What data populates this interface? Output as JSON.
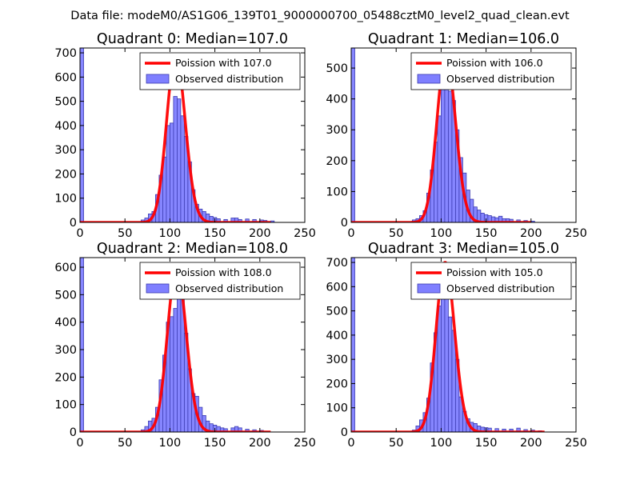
{
  "suptitle": "Data file: modeM0/AS1G06_139T01_9000000700_05488cztM0_level2_quad_clean.evt",
  "colors": {
    "bar_fill": "#7f7fff",
    "bar_edge": "#3a3ab0",
    "curve": "#ff0000",
    "axis": "#000000"
  },
  "chart_data": [
    {
      "type": "bar",
      "title": "Quadrant 0: Median=107.0",
      "xlabel": "",
      "ylabel": "",
      "xlim": [
        0,
        250
      ],
      "ylim": [
        0,
        720
      ],
      "xticks": [
        0,
        50,
        100,
        150,
        200,
        250
      ],
      "yticks": [
        0,
        100,
        200,
        300,
        400,
        500,
        600,
        700
      ],
      "bin_width": 4,
      "bins": [
        [
          0,
          720
        ],
        [
          68,
          10
        ],
        [
          72,
          18
        ],
        [
          76,
          35
        ],
        [
          80,
          45
        ],
        [
          84,
          115
        ],
        [
          88,
          195
        ],
        [
          92,
          270
        ],
        [
          96,
          400
        ],
        [
          100,
          410
        ],
        [
          104,
          520
        ],
        [
          108,
          510
        ],
        [
          112,
          440
        ],
        [
          116,
          355
        ],
        [
          120,
          250
        ],
        [
          124,
          135
        ],
        [
          128,
          75
        ],
        [
          132,
          55
        ],
        [
          136,
          45
        ],
        [
          140,
          35
        ],
        [
          144,
          25
        ],
        [
          148,
          20
        ],
        [
          152,
          15
        ],
        [
          160,
          12
        ],
        [
          168,
          18
        ],
        [
          172,
          18
        ],
        [
          176,
          12
        ],
        [
          184,
          14
        ],
        [
          192,
          12
        ],
        [
          200,
          10
        ],
        [
          204,
          8
        ],
        [
          212,
          6
        ]
      ],
      "poisson": {
        "mean": 107.0,
        "peak": 690,
        "x_range": [
          0,
          212
        ]
      },
      "legend": {
        "position": "top-right",
        "entries": [
          "Poission with 107.0",
          "Observed distribution"
        ]
      }
    },
    {
      "type": "bar",
      "title": "Quadrant 1: Median=106.0",
      "xlabel": "",
      "ylabel": "",
      "xlim": [
        0,
        250
      ],
      "ylim": [
        0,
        565
      ],
      "xticks": [
        0,
        50,
        100,
        150,
        200,
        250
      ],
      "yticks": [
        0,
        100,
        200,
        300,
        400,
        500
      ],
      "bin_width": 4,
      "bins": [
        [
          0,
          565
        ],
        [
          68,
          8
        ],
        [
          72,
          12
        ],
        [
          76,
          22
        ],
        [
          80,
          38
        ],
        [
          84,
          95
        ],
        [
          88,
          170
        ],
        [
          92,
          260
        ],
        [
          96,
          345
        ],
        [
          100,
          440
        ],
        [
          104,
          470
        ],
        [
          108,
          425
        ],
        [
          112,
          395
        ],
        [
          116,
          300
        ],
        [
          120,
          210
        ],
        [
          124,
          160
        ],
        [
          128,
          105
        ],
        [
          132,
          75
        ],
        [
          136,
          50
        ],
        [
          140,
          40
        ],
        [
          144,
          30
        ],
        [
          148,
          25
        ],
        [
          152,
          22
        ],
        [
          156,
          18
        ],
        [
          160,
          15
        ],
        [
          164,
          20
        ],
        [
          168,
          12
        ],
        [
          172,
          12
        ],
        [
          176,
          10
        ],
        [
          184,
          8
        ],
        [
          192,
          6
        ],
        [
          200,
          4
        ]
      ],
      "poisson": {
        "mean": 106.0,
        "peak": 545,
        "x_range": [
          0,
          200
        ]
      },
      "legend": {
        "position": "top-right",
        "entries": [
          "Poission with 106.0",
          "Observed distribution"
        ]
      }
    },
    {
      "type": "bar",
      "title": "Quadrant 2: Median=108.0",
      "xlabel": "",
      "ylabel": "",
      "xlim": [
        0,
        250
      ],
      "ylim": [
        0,
        635
      ],
      "xticks": [
        0,
        50,
        100,
        150,
        200,
        250
      ],
      "yticks": [
        0,
        100,
        200,
        300,
        400,
        500,
        600
      ],
      "bin_width": 4,
      "bins": [
        [
          0,
          635
        ],
        [
          68,
          8
        ],
        [
          72,
          20
        ],
        [
          76,
          40
        ],
        [
          80,
          50
        ],
        [
          84,
          90
        ],
        [
          88,
          190
        ],
        [
          92,
          280
        ],
        [
          96,
          400
        ],
        [
          100,
          420
        ],
        [
          104,
          450
        ],
        [
          108,
          560
        ],
        [
          112,
          520
        ],
        [
          116,
          360
        ],
        [
          120,
          230
        ],
        [
          124,
          140
        ],
        [
          128,
          130
        ],
        [
          132,
          90
        ],
        [
          136,
          60
        ],
        [
          140,
          40
        ],
        [
          144,
          30
        ],
        [
          148,
          25
        ],
        [
          152,
          20
        ],
        [
          156,
          15
        ],
        [
          160,
          12
        ],
        [
          168,
          15
        ],
        [
          172,
          20
        ],
        [
          176,
          15
        ],
        [
          184,
          10
        ],
        [
          192,
          8
        ],
        [
          200,
          6
        ]
      ],
      "poisson": {
        "mean": 108.0,
        "peak": 600,
        "x_range": [
          0,
          212
        ]
      },
      "legend": {
        "position": "top-right",
        "entries": [
          "Poission with 108.0",
          "Observed distribution"
        ]
      }
    },
    {
      "type": "bar",
      "title": "Quadrant 3: Median=105.0",
      "xlabel": "",
      "ylabel": "",
      "xlim": [
        0,
        250
      ],
      "ylim": [
        0,
        720
      ],
      "xticks": [
        0,
        50,
        100,
        150,
        200,
        250
      ],
      "yticks": [
        0,
        100,
        200,
        300,
        400,
        500,
        600,
        700
      ],
      "bin_width": 4,
      "bins": [
        [
          0,
          720
        ],
        [
          68,
          8
        ],
        [
          72,
          25
        ],
        [
          76,
          50
        ],
        [
          80,
          80
        ],
        [
          84,
          140
        ],
        [
          88,
          285
        ],
        [
          92,
          410
        ],
        [
          96,
          520
        ],
        [
          100,
          570
        ],
        [
          104,
          650
        ],
        [
          108,
          475
        ],
        [
          112,
          420
        ],
        [
          116,
          300
        ],
        [
          120,
          145
        ],
        [
          124,
          85
        ],
        [
          128,
          55
        ],
        [
          132,
          40
        ],
        [
          136,
          35
        ],
        [
          140,
          25
        ],
        [
          144,
          20
        ],
        [
          148,
          18
        ],
        [
          152,
          16
        ],
        [
          160,
          14
        ],
        [
          168,
          12
        ],
        [
          176,
          12
        ],
        [
          184,
          16
        ],
        [
          192,
          10
        ],
        [
          200,
          8
        ],
        [
          208,
          5
        ]
      ],
      "poisson": {
        "mean": 105.0,
        "peak": 700,
        "x_range": [
          0,
          215
        ]
      },
      "legend": {
        "position": "top-right",
        "entries": [
          "Poission with 105.0",
          "Observed distribution"
        ]
      }
    }
  ]
}
